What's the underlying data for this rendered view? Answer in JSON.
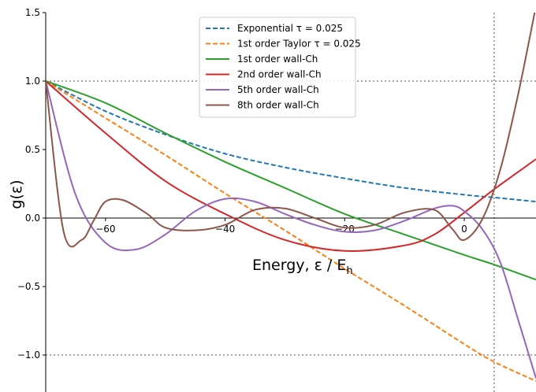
{
  "chart_data": {
    "type": "line",
    "xlabel": "Energy, ε / E",
    "xlabel_sub": "h",
    "ylabel": "g(ε)",
    "xlim": [
      -70,
      12
    ],
    "ylim": [
      -1.27,
      1.5
    ],
    "x_ticks": [
      -60,
      -40,
      -20,
      0
    ],
    "x_tick_labels": [
      "−60",
      "−40",
      "−20",
      "0"
    ],
    "y_ticks": [
      -1.0,
      -0.5,
      0.0,
      0.5,
      1.0,
      1.5
    ],
    "y_tick_labels": [
      "−1.0",
      "−0.5",
      "0.0",
      "0.5",
      "1.0",
      "1.5"
    ],
    "reference_lines": {
      "horizontal": [
        1.0,
        -1.0
      ],
      "vertical": [
        5
      ]
    },
    "legend_position": "top-center",
    "series": [
      {
        "name": "Exponential τ = 0.025",
        "color": "#1f77b4",
        "dashed": true,
        "x": [
          -70,
          -60,
          -50,
          -40,
          -30,
          -20,
          -10,
          0,
          5,
          12
        ],
        "y": [
          1.0,
          0.78,
          0.61,
          0.47,
          0.37,
          0.29,
          0.22,
          0.17,
          0.15,
          0.12
        ]
      },
      {
        "name": "1st order Taylor τ = 0.025",
        "color": "#ff7f0e",
        "dashed": true,
        "x": [
          -70,
          -60,
          -50,
          -40,
          -30,
          -20,
          -10,
          0,
          5,
          12
        ],
        "y": [
          1.0,
          0.73,
          0.46,
          0.18,
          -0.09,
          -0.37,
          -0.64,
          -0.92,
          -1.05,
          -1.19
        ]
      },
      {
        "name": "1st order wall-Ch",
        "color": "#2ca02c",
        "dashed": false,
        "x": [
          -70,
          -60,
          -50,
          -40,
          -30,
          -20,
          -10,
          0,
          5,
          12
        ],
        "y": [
          1.0,
          0.84,
          0.62,
          0.41,
          0.22,
          0.03,
          -0.12,
          -0.27,
          -0.34,
          -0.45
        ]
      },
      {
        "name": "2nd order wall-Ch",
        "color": "#d62728",
        "dashed": false,
        "x": [
          -70,
          -60,
          -50,
          -40,
          -30,
          -20,
          -10,
          -5,
          0,
          5,
          12
        ],
        "y": [
          1.0,
          0.62,
          0.27,
          0.03,
          -0.16,
          -0.24,
          -0.2,
          -0.12,
          0.04,
          0.21,
          0.43
        ]
      },
      {
        "name": "5th order wall-Ch",
        "color": "#9467bd",
        "dashed": false,
        "x": [
          -70,
          -65,
          -60,
          -55,
          -50,
          -45,
          -40,
          -35,
          -30,
          -25,
          -20,
          -15,
          -10,
          -5,
          -2,
          0,
          3,
          6,
          9,
          12
        ],
        "y": [
          1.0,
          0.17,
          -0.18,
          -0.23,
          -0.12,
          0.05,
          0.14,
          0.12,
          0.03,
          -0.05,
          -0.1,
          -0.09,
          -0.02,
          0.07,
          0.09,
          0.05,
          -0.08,
          -0.32,
          -0.74,
          -1.17
        ]
      },
      {
        "name": "8th order wall-Ch",
        "color": "#8c564b",
        "dashed": false,
        "x": [
          -70,
          -67,
          -64,
          -62,
          -60,
          -57,
          -53,
          -50,
          -45,
          -40,
          -35,
          -30,
          -25,
          -20,
          -15,
          -10,
          -5,
          -2,
          0,
          3,
          6,
          9,
          12
        ],
        "y": [
          1.0,
          -0.1,
          -0.16,
          -0.02,
          0.12,
          0.13,
          0.03,
          -0.07,
          -0.09,
          -0.05,
          0.06,
          0.07,
          0.0,
          -0.07,
          -0.05,
          0.04,
          0.06,
          -0.08,
          -0.16,
          -0.01,
          0.35,
          0.9,
          1.55
        ]
      }
    ]
  }
}
